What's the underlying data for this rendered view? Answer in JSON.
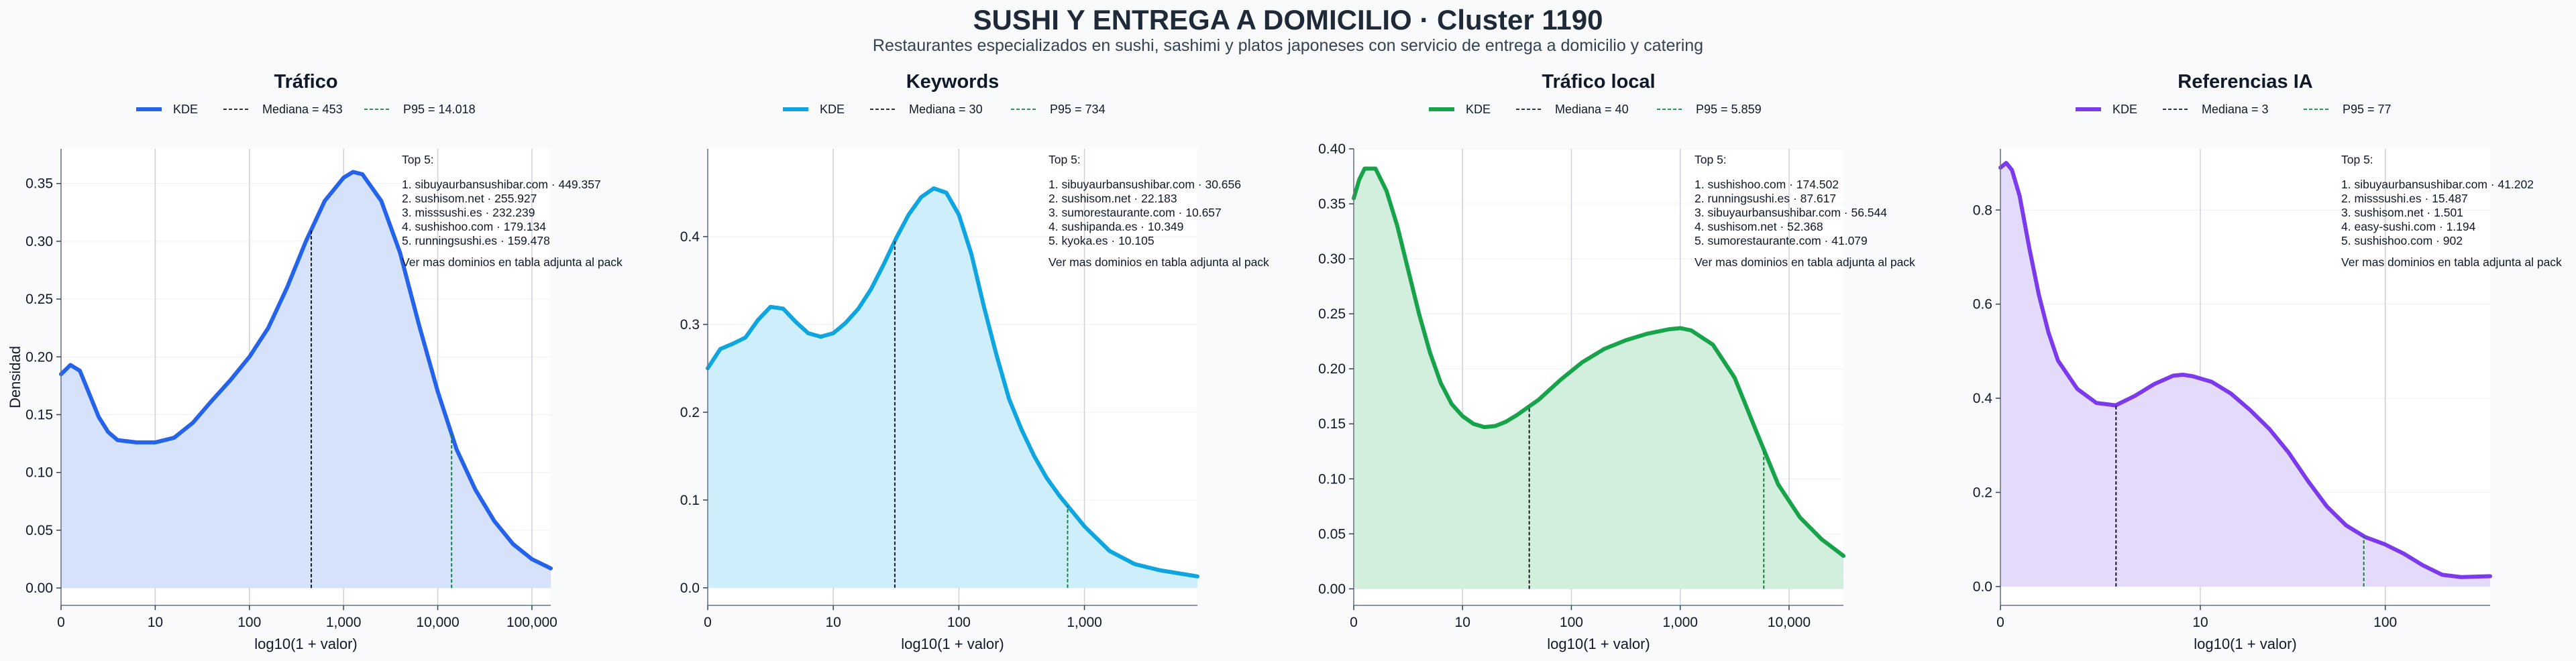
{
  "title": "SUSHI Y ENTREGA A DOMICILIO · Cluster 1190",
  "subtitle": "Restaurantes especializados en sushi, sashimi y platos japoneses con servicio de entrega a domicilio y catering",
  "chart_data": [
    {
      "type": "area",
      "title": "Tráfico",
      "color": "#2563eb",
      "fill": "#d6e1fa",
      "legend": [
        "KDE",
        "Mediana = 453",
        "P95 = 14.018"
      ],
      "xlabel": "log10(1 + valor)",
      "ylabel": "Densidad",
      "xlim": [
        0,
        5.2
      ],
      "ylim": [
        -0.015,
        0.38
      ],
      "x_ticks": [
        {
          "v": 0,
          "label": "0"
        },
        {
          "v": 1,
          "label": "10"
        },
        {
          "v": 2,
          "label": "100"
        },
        {
          "v": 3,
          "label": "1,000"
        },
        {
          "v": 4,
          "label": "10,000"
        },
        {
          "v": 5,
          "label": "100,000"
        }
      ],
      "y_ticks": [
        {
          "v": 0,
          "label": "0.00"
        },
        {
          "v": 0.05,
          "label": "0.05"
        },
        {
          "v": 0.1,
          "label": "0.10"
        },
        {
          "v": 0.15,
          "label": "0.15"
        },
        {
          "v": 0.2,
          "label": "0.20"
        },
        {
          "v": 0.25,
          "label": "0.25"
        },
        {
          "v": 0.3,
          "label": "0.30"
        },
        {
          "v": 0.35,
          "label": "0.35"
        }
      ],
      "median_x": 2.657,
      "p95_x": 4.147,
      "kde": [
        [
          0,
          0.185
        ],
        [
          0.1,
          0.193
        ],
        [
          0.2,
          0.188
        ],
        [
          0.3,
          0.168
        ],
        [
          0.4,
          0.148
        ],
        [
          0.5,
          0.135
        ],
        [
          0.6,
          0.128
        ],
        [
          0.8,
          0.126
        ],
        [
          1.0,
          0.126
        ],
        [
          1.2,
          0.13
        ],
        [
          1.4,
          0.143
        ],
        [
          1.6,
          0.162
        ],
        [
          1.8,
          0.18
        ],
        [
          2.0,
          0.2
        ],
        [
          2.2,
          0.225
        ],
        [
          2.4,
          0.26
        ],
        [
          2.6,
          0.3
        ],
        [
          2.8,
          0.335
        ],
        [
          3.0,
          0.355
        ],
        [
          3.1,
          0.36
        ],
        [
          3.2,
          0.358
        ],
        [
          3.4,
          0.335
        ],
        [
          3.6,
          0.29
        ],
        [
          3.8,
          0.228
        ],
        [
          4.0,
          0.17
        ],
        [
          4.2,
          0.12
        ],
        [
          4.4,
          0.085
        ],
        [
          4.6,
          0.058
        ],
        [
          4.8,
          0.038
        ],
        [
          5.0,
          0.025
        ],
        [
          5.2,
          0.017
        ]
      ],
      "top5_heading": "Top 5:",
      "top5": [
        "1. sibuyaurbansushibar.com · 449.357",
        "2. sushisom.net · 255.927",
        "3. misssushi.es · 232.239",
        "4. sushishoo.com · 179.134",
        "5. runningsushi.es · 159.478"
      ],
      "note": "Ver mas dominios en tabla adjunta al pack"
    },
    {
      "type": "area",
      "title": "Keywords",
      "color": "#0ea5e0",
      "fill": "#cfeefb",
      "legend": [
        "KDE",
        "Mediana = 30",
        "P95 = 734"
      ],
      "xlabel": "log10(1 + valor)",
      "ylabel": "",
      "xlim": [
        0,
        3.9
      ],
      "ylim": [
        -0.02,
        0.5
      ],
      "x_ticks": [
        {
          "v": 0,
          "label": "0"
        },
        {
          "v": 1,
          "label": "10"
        },
        {
          "v": 2,
          "label": "100"
        },
        {
          "v": 3,
          "label": "1,000"
        }
      ],
      "y_ticks": [
        {
          "v": 0,
          "label": "0.0"
        },
        {
          "v": 0.1,
          "label": "0.1"
        },
        {
          "v": 0.2,
          "label": "0.2"
        },
        {
          "v": 0.3,
          "label": "0.3"
        },
        {
          "v": 0.4,
          "label": "0.4"
        }
      ],
      "median_x": 1.49,
      "p95_x": 2.866,
      "kde": [
        [
          0,
          0.25
        ],
        [
          0.1,
          0.272
        ],
        [
          0.2,
          0.278
        ],
        [
          0.3,
          0.285
        ],
        [
          0.4,
          0.305
        ],
        [
          0.5,
          0.32
        ],
        [
          0.6,
          0.318
        ],
        [
          0.7,
          0.303
        ],
        [
          0.8,
          0.29
        ],
        [
          0.9,
          0.286
        ],
        [
          1.0,
          0.29
        ],
        [
          1.1,
          0.302
        ],
        [
          1.2,
          0.318
        ],
        [
          1.3,
          0.34
        ],
        [
          1.4,
          0.368
        ],
        [
          1.5,
          0.398
        ],
        [
          1.6,
          0.425
        ],
        [
          1.7,
          0.445
        ],
        [
          1.8,
          0.455
        ],
        [
          1.9,
          0.45
        ],
        [
          2.0,
          0.425
        ],
        [
          2.1,
          0.38
        ],
        [
          2.2,
          0.32
        ],
        [
          2.3,
          0.265
        ],
        [
          2.4,
          0.215
        ],
        [
          2.5,
          0.18
        ],
        [
          2.6,
          0.15
        ],
        [
          2.7,
          0.125
        ],
        [
          2.8,
          0.105
        ],
        [
          3.0,
          0.07
        ],
        [
          3.2,
          0.042
        ],
        [
          3.4,
          0.027
        ],
        [
          3.6,
          0.02
        ],
        [
          3.9,
          0.013
        ]
      ],
      "top5_heading": "Top 5:",
      "top5": [
        "1. sibuyaurbansushibar.com · 30.656",
        "2. sushisom.net · 22.183",
        "3. sumorestaurante.com · 10.657",
        "4. sushipanda.es · 10.349",
        "5. kyoka.es · 10.105"
      ],
      "note": "Ver mas dominios en tabla adjunta al pack"
    },
    {
      "type": "area",
      "title": "Tráfico local",
      "color": "#16a34a",
      "fill": "#d2eedc",
      "legend": [
        "KDE",
        "Mediana = 40",
        "P95 = 5.859"
      ],
      "xlabel": "log10(1 + valor)",
      "ylabel": "",
      "xlim": [
        0,
        4.5
      ],
      "ylim": [
        -0.015,
        0.4
      ],
      "x_ticks": [
        {
          "v": 0,
          "label": "0"
        },
        {
          "v": 1,
          "label": "10"
        },
        {
          "v": 2,
          "label": "100"
        },
        {
          "v": 3,
          "label": "1,000"
        },
        {
          "v": 4,
          "label": "10,000"
        }
      ],
      "y_ticks": [
        {
          "v": 0,
          "label": "0.00"
        },
        {
          "v": 0.05,
          "label": "0.05"
        },
        {
          "v": 0.1,
          "label": "0.10"
        },
        {
          "v": 0.15,
          "label": "0.15"
        },
        {
          "v": 0.2,
          "label": "0.20"
        },
        {
          "v": 0.25,
          "label": "0.25"
        },
        {
          "v": 0.3,
          "label": "0.30"
        },
        {
          "v": 0.35,
          "label": "0.35"
        },
        {
          "v": 0.4,
          "label": "0.40"
        }
      ],
      "median_x": 1.613,
      "p95_x": 3.768,
      "kde": [
        [
          0,
          0.355
        ],
        [
          0.05,
          0.372
        ],
        [
          0.1,
          0.382
        ],
        [
          0.2,
          0.382
        ],
        [
          0.3,
          0.362
        ],
        [
          0.4,
          0.33
        ],
        [
          0.5,
          0.29
        ],
        [
          0.6,
          0.25
        ],
        [
          0.7,
          0.215
        ],
        [
          0.8,
          0.187
        ],
        [
          0.9,
          0.168
        ],
        [
          1.0,
          0.157
        ],
        [
          1.1,
          0.15
        ],
        [
          1.2,
          0.147
        ],
        [
          1.3,
          0.148
        ],
        [
          1.4,
          0.152
        ],
        [
          1.5,
          0.158
        ],
        [
          1.7,
          0.172
        ],
        [
          1.9,
          0.19
        ],
        [
          2.1,
          0.206
        ],
        [
          2.3,
          0.218
        ],
        [
          2.5,
          0.226
        ],
        [
          2.7,
          0.232
        ],
        [
          2.9,
          0.236
        ],
        [
          3.0,
          0.237
        ],
        [
          3.1,
          0.235
        ],
        [
          3.3,
          0.222
        ],
        [
          3.5,
          0.192
        ],
        [
          3.7,
          0.143
        ],
        [
          3.9,
          0.095
        ],
        [
          4.1,
          0.065
        ],
        [
          4.3,
          0.045
        ],
        [
          4.5,
          0.03
        ]
      ],
      "top5_heading": "Top 5:",
      "top5": [
        "1. sushishoo.com · 174.502",
        "2. runningsushi.es · 87.617",
        "3. sibuyaurbansushibar.com · 56.544",
        "4. sushisom.net · 52.368",
        "5. sumorestaurante.com · 41.079"
      ],
      "note": "Ver mas dominios en tabla adjunta al pack"
    },
    {
      "type": "area",
      "title": "Referencias IA",
      "color": "#7c3aed",
      "fill": "#e4dafa",
      "legend": [
        "KDE",
        "Mediana = 3",
        "P95 = 77"
      ],
      "xlabel": "log10(1 + valor)",
      "ylabel": "",
      "xlim": [
        0,
        2.55
      ],
      "ylim": [
        -0.04,
        0.93
      ],
      "x_ticks": [
        {
          "v": 0,
          "label": "0"
        },
        {
          "v": 1.041,
          "label": "10"
        },
        {
          "v": 2.004,
          "label": "100"
        }
      ],
      "y_ticks": [
        {
          "v": 0,
          "label": "0.0"
        },
        {
          "v": 0.2,
          "label": "0.2"
        },
        {
          "v": 0.4,
          "label": "0.4"
        },
        {
          "v": 0.6,
          "label": "0.6"
        },
        {
          "v": 0.8,
          "label": "0.8"
        }
      ],
      "median_x": 0.602,
      "p95_x": 1.892,
      "kde": [
        [
          0,
          0.89
        ],
        [
          0.03,
          0.9
        ],
        [
          0.06,
          0.885
        ],
        [
          0.1,
          0.83
        ],
        [
          0.15,
          0.72
        ],
        [
          0.2,
          0.62
        ],
        [
          0.25,
          0.54
        ],
        [
          0.3,
          0.48
        ],
        [
          0.4,
          0.42
        ],
        [
          0.5,
          0.39
        ],
        [
          0.6,
          0.385
        ],
        [
          0.7,
          0.405
        ],
        [
          0.8,
          0.43
        ],
        [
          0.9,
          0.448
        ],
        [
          0.95,
          0.45
        ],
        [
          1.0,
          0.447
        ],
        [
          1.1,
          0.435
        ],
        [
          1.2,
          0.41
        ],
        [
          1.3,
          0.375
        ],
        [
          1.4,
          0.335
        ],
        [
          1.5,
          0.285
        ],
        [
          1.6,
          0.225
        ],
        [
          1.7,
          0.17
        ],
        [
          1.8,
          0.13
        ],
        [
          1.9,
          0.105
        ],
        [
          2.0,
          0.09
        ],
        [
          2.1,
          0.07
        ],
        [
          2.2,
          0.045
        ],
        [
          2.3,
          0.025
        ],
        [
          2.4,
          0.02
        ],
        [
          2.55,
          0.022
        ]
      ],
      "top5_heading": "Top 5:",
      "top5": [
        "1. sibuyaurbansushibar.com · 41.202",
        "2. misssushi.es · 15.487",
        "3. sushisom.net · 1.501",
        "4. easy-sushi.com · 1.194",
        "5. sushishoo.com · 902"
      ],
      "note": "Ver mas dominios en tabla adjunta al pack"
    }
  ]
}
